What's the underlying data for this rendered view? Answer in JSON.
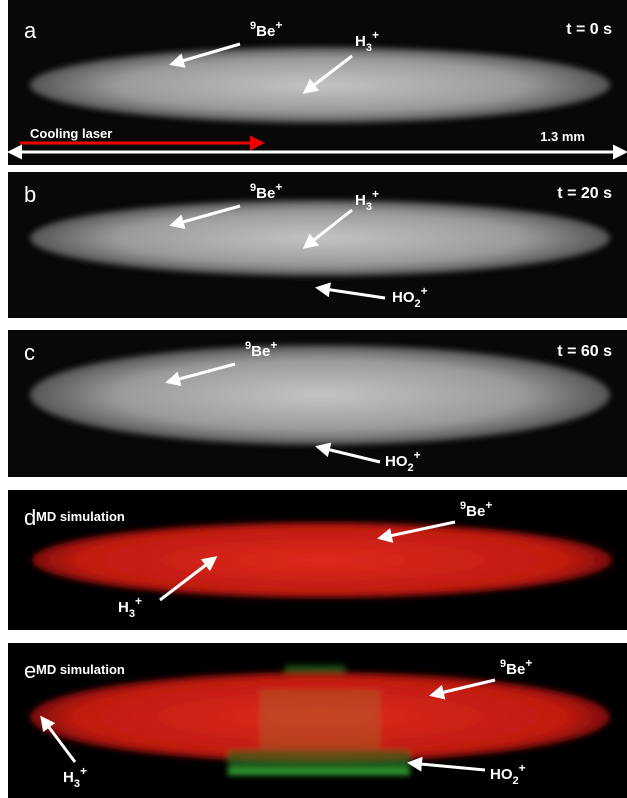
{
  "panels": [
    {
      "letter": "a",
      "time": "t = 0 s",
      "laser": "Cooling laser",
      "scale": "1.3 mm",
      "labels": [
        {
          "pre": "9",
          "main": "Be",
          "sup": "+"
        },
        {
          "main": "H",
          "sub": "3",
          "sup": "+"
        }
      ]
    },
    {
      "letter": "b",
      "time": "t = 20 s",
      "labels": [
        {
          "pre": "9",
          "main": "Be",
          "sup": "+"
        },
        {
          "main": "H",
          "sub": "3",
          "sup": "+"
        },
        {
          "main": "HO",
          "sub": "2",
          "sup": "+"
        }
      ]
    },
    {
      "letter": "c",
      "time": "t = 60 s",
      "labels": [
        {
          "pre": "9",
          "main": "Be",
          "sup": "+"
        },
        {
          "main": "HO",
          "sub": "2",
          "sup": "+"
        }
      ]
    },
    {
      "letter": "d",
      "caption": "MD simulation",
      "labels": [
        {
          "pre": "9",
          "main": "Be",
          "sup": "+"
        },
        {
          "main": "H",
          "sub": "3",
          "sup": "+"
        }
      ]
    },
    {
      "letter": "e",
      "caption": "MD simulation",
      "labels": [
        {
          "pre": "9",
          "main": "Be",
          "sup": "+"
        },
        {
          "main": "HO",
          "sub": "2",
          "sup": "+"
        },
        {
          "main": "H",
          "sub": "3",
          "sup": "+"
        }
      ]
    }
  ]
}
